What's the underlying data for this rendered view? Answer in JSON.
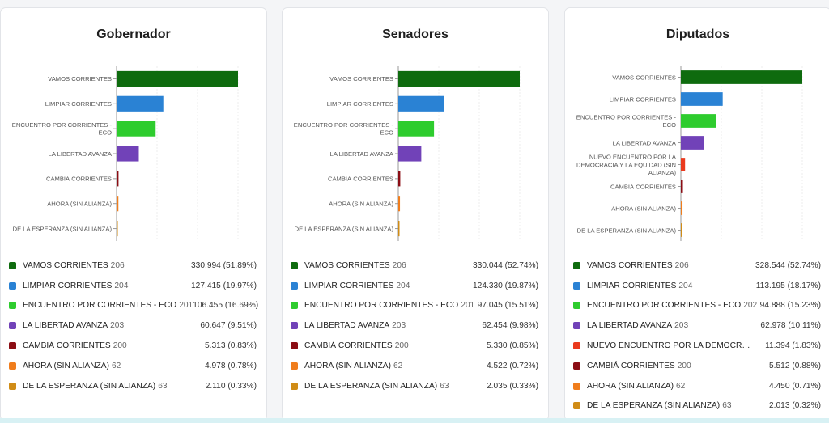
{
  "colors": {
    "vamos": "#0e6b0e",
    "limpiar": "#2a82d4",
    "encuentro": "#2ecc2e",
    "libertad": "#7142b8",
    "cambia": "#8b0d14",
    "ahora": "#f07d1c",
    "esperanza": "#d08c16",
    "nuevo": "#ea3a1e"
  },
  "chart_data": [
    {
      "type": "bar",
      "title": "Gobernador",
      "categories": [
        [
          "VAMOS CORRIENTES"
        ],
        [
          "LIMPIAR CORRIENTES"
        ],
        [
          "ENCUENTRO POR CORRIENTES -",
          "ECO"
        ],
        [
          "LA LIBERTAD AVANZA"
        ],
        [
          "CAMBIÁ CORRIENTES"
        ],
        [
          "AHORA (SIN ALIANZA)"
        ],
        [
          "DE LA ESPERANZA (SIN ALIANZA)"
        ]
      ],
      "values": [
        330994,
        127415,
        106455,
        60647,
        5313,
        4978,
        2110
      ],
      "colors": [
        "#0e6b0e",
        "#2a82d4",
        "#2ecc2e",
        "#7142b8",
        "#8b0d14",
        "#f07d1c",
        "#d08c16"
      ],
      "legend": [
        {
          "name": "VAMOS CORRIENTES",
          "num": "206",
          "value": "330.994 (51.89%)"
        },
        {
          "name": "LIMPIAR CORRIENTES",
          "num": "204",
          "value": "127.415 (19.97%)"
        },
        {
          "name": "ENCUENTRO POR CORRIENTES - ECO",
          "num": "201",
          "value": "106.455 (16.69%)"
        },
        {
          "name": "LA LIBERTAD AVANZA",
          "num": "203",
          "value": "60.647 (9.51%)"
        },
        {
          "name": "CAMBIÁ CORRIENTES",
          "num": "200",
          "value": "5.313 (0.83%)"
        },
        {
          "name": "AHORA (SIN ALIANZA)",
          "num": "62",
          "value": "4.978 (0.78%)"
        },
        {
          "name": "DE LA ESPERANZA (SIN ALIANZA)",
          "num": "63",
          "value": "2.110 (0.33%)"
        }
      ]
    },
    {
      "type": "bar",
      "title": "Senadores",
      "categories": [
        [
          "VAMOS CORRIENTES"
        ],
        [
          "LIMPIAR CORRIENTES"
        ],
        [
          "ENCUENTRO POR CORRIENTES -",
          "ECO"
        ],
        [
          "LA LIBERTAD AVANZA"
        ],
        [
          "CAMBIÁ CORRIENTES"
        ],
        [
          "AHORA (SIN ALIANZA)"
        ],
        [
          "DE LA ESPERANZA (SIN ALIANZA)"
        ]
      ],
      "values": [
        330044,
        124330,
        97045,
        62454,
        5330,
        4522,
        2035
      ],
      "colors": [
        "#0e6b0e",
        "#2a82d4",
        "#2ecc2e",
        "#7142b8",
        "#8b0d14",
        "#f07d1c",
        "#d08c16"
      ],
      "legend": [
        {
          "name": "VAMOS CORRIENTES",
          "num": "206",
          "value": "330.044 (52.74%)"
        },
        {
          "name": "LIMPIAR CORRIENTES",
          "num": "204",
          "value": "124.330 (19.87%)"
        },
        {
          "name": "ENCUENTRO POR CORRIENTES - ECO",
          "num": "201",
          "value": "97.045 (15.51%)"
        },
        {
          "name": "LA LIBERTAD AVANZA",
          "num": "203",
          "value": "62.454 (9.98%)"
        },
        {
          "name": "CAMBIÁ CORRIENTES",
          "num": "200",
          "value": "5.330 (0.85%)"
        },
        {
          "name": "AHORA (SIN ALIANZA)",
          "num": "62",
          "value": "4.522 (0.72%)"
        },
        {
          "name": "DE LA ESPERANZA (SIN ALIANZA)",
          "num": "63",
          "value": "2.035 (0.33%)"
        }
      ]
    },
    {
      "type": "bar",
      "title": "Diputados",
      "categories": [
        [
          "VAMOS CORRIENTES"
        ],
        [
          "LIMPIAR CORRIENTES"
        ],
        [
          "ENCUENTRO POR CORRIENTES -",
          "ECO"
        ],
        [
          "LA LIBERTAD AVANZA"
        ],
        [
          "NUEVO ENCUENTRO POR LA",
          "DEMOCRACIA Y LA EQUIDAD (SIN",
          "ALIANZA)"
        ],
        [
          "CAMBIÁ CORRIENTES"
        ],
        [
          "AHORA (SIN ALIANZA)"
        ],
        [
          "DE LA ESPERANZA (SIN ALIANZA)"
        ]
      ],
      "values": [
        328544,
        113195,
        94888,
        62978,
        11394,
        5512,
        4450,
        2013
      ],
      "colors": [
        "#0e6b0e",
        "#2a82d4",
        "#2ecc2e",
        "#7142b8",
        "#ea3a1e",
        "#8b0d14",
        "#f07d1c",
        "#d08c16"
      ],
      "legend": [
        {
          "name": "VAMOS CORRIENTES",
          "num": "206",
          "value": "328.544 (52.74%)"
        },
        {
          "name": "LIMPIAR CORRIENTES",
          "num": "204",
          "value": "113.195 (18.17%)"
        },
        {
          "name": "ENCUENTRO POR CORRIENTES - ECO",
          "num": "202",
          "value": "94.888 (15.23%)"
        },
        {
          "name": "LA LIBERTAD AVANZA",
          "num": "203",
          "value": "62.978 (10.11%)"
        },
        {
          "name": "NUEVO ENCUENTRO POR LA DEMOCR…",
          "num": "",
          "value": "11.394 (1.83%)"
        },
        {
          "name": "CAMBIÁ CORRIENTES",
          "num": "200",
          "value": "5.512 (0.88%)"
        },
        {
          "name": "AHORA (SIN ALIANZA)",
          "num": "62",
          "value": "4.450 (0.71%)"
        },
        {
          "name": "DE LA ESPERANZA (SIN ALIANZA)",
          "num": "63",
          "value": "2.013 (0.32%)"
        }
      ]
    }
  ]
}
